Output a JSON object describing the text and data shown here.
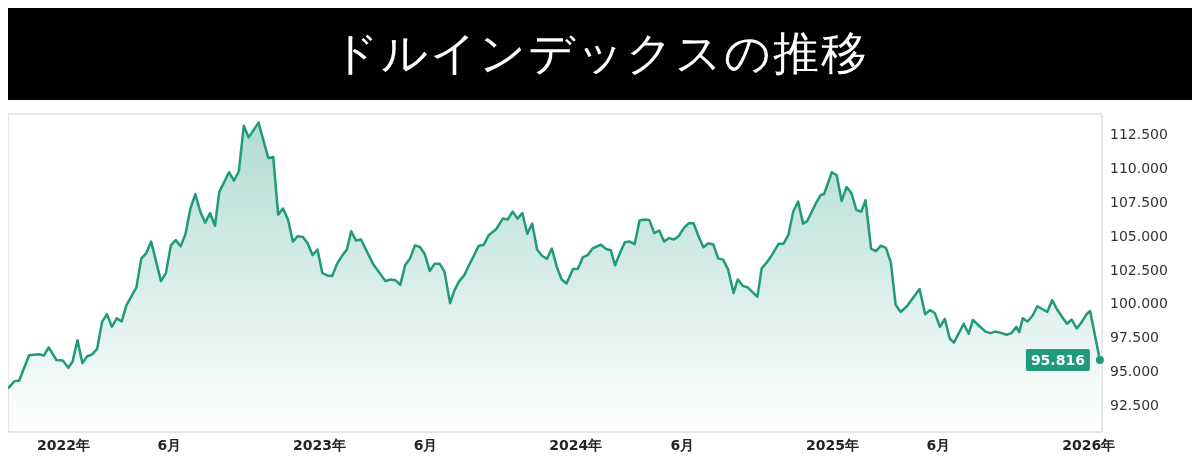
{
  "chart_data": {
    "type": "area",
    "title": "ドルインデックスの推移",
    "x": [
      "2021-10-14",
      "2021-10-23",
      "2021-10-30",
      "2021-11-13",
      "2021-11-27",
      "2021-12-04",
      "2021-12-11",
      "2021-12-22",
      "2021-12-31",
      "2022-01-08",
      "2022-01-14",
      "2022-01-21",
      "2022-01-28",
      "2022-02-04",
      "2022-02-11",
      "2022-02-18",
      "2022-02-25",
      "2022-03-04",
      "2022-03-11",
      "2022-03-18",
      "2022-03-25",
      "2022-04-01",
      "2022-04-15",
      "2022-04-22",
      "2022-04-29",
      "2022-05-06",
      "2022-05-20",
      "2022-05-27",
      "2022-06-03",
      "2022-06-10",
      "2022-06-17",
      "2022-06-24",
      "2022-07-01",
      "2022-07-08",
      "2022-07-15",
      "2022-07-22",
      "2022-07-29",
      "2022-08-05",
      "2022-08-11",
      "2022-08-25",
      "2022-09-01",
      "2022-09-08",
      "2022-09-15",
      "2022-09-22",
      "2022-10-06",
      "2022-10-20",
      "2022-10-27",
      "2022-11-03",
      "2022-11-10",
      "2022-11-17",
      "2022-11-24",
      "2022-12-01",
      "2022-12-08",
      "2022-12-15",
      "2022-12-22",
      "2022-12-29",
      "2023-01-05",
      "2023-01-12",
      "2023-01-19",
      "2023-01-26",
      "2023-02-02",
      "2023-02-09",
      "2023-02-15",
      "2023-02-22",
      "2023-03-01",
      "2023-03-18",
      "2023-04-05",
      "2023-04-12",
      "2023-04-19",
      "2023-04-26",
      "2023-05-03",
      "2023-05-10",
      "2023-05-17",
      "2023-05-24",
      "2023-05-31",
      "2023-06-07",
      "2023-06-14",
      "2023-06-21",
      "2023-06-28",
      "2023-07-06",
      "2023-07-12",
      "2023-07-19",
      "2023-07-26",
      "2023-08-02",
      "2023-08-16",
      "2023-08-23",
      "2023-08-30",
      "2023-09-10",
      "2023-09-19",
      "2023-09-26",
      "2023-10-03",
      "2023-10-10",
      "2023-10-17",
      "2023-10-24",
      "2023-10-31",
      "2023-11-07",
      "2023-11-14",
      "2023-11-21",
      "2023-11-28",
      "2023-12-05",
      "2023-12-12",
      "2023-12-19",
      "2023-12-28",
      "2024-01-04",
      "2024-01-11",
      "2024-01-18",
      "2024-01-25",
      "2024-02-06",
      "2024-02-13",
      "2024-02-20",
      "2024-02-26",
      "2024-03-04",
      "2024-03-11",
      "2024-03-18",
      "2024-03-25",
      "2024-04-01",
      "2024-04-08",
      "2024-04-15",
      "2024-04-22",
      "2024-04-29",
      "2024-05-06",
      "2024-05-13",
      "2024-05-20",
      "2024-05-27",
      "2024-06-03",
      "2024-06-10",
      "2024-06-17",
      "2024-06-24",
      "2024-07-01",
      "2024-07-08",
      "2024-07-15",
      "2024-07-22",
      "2024-07-29",
      "2024-08-05",
      "2024-08-13",
      "2024-08-19",
      "2024-08-26",
      "2024-09-02",
      "2024-09-09",
      "2024-09-16",
      "2024-09-22",
      "2024-09-29",
      "2024-10-06",
      "2024-10-16",
      "2024-10-23",
      "2024-10-30",
      "2024-11-06",
      "2024-11-13",
      "2024-11-20",
      "2024-11-26",
      "2024-12-08",
      "2024-12-15",
      "2024-12-20",
      "2024-12-31",
      "2025-01-07",
      "2025-01-14",
      "2025-01-21",
      "2025-01-28",
      "2025-02-04",
      "2025-02-11",
      "2025-02-17",
      "2025-02-25",
      "2025-03-04",
      "2025-03-11",
      "2025-03-18",
      "2025-03-25",
      "2025-04-01",
      "2025-04-08",
      "2025-04-17",
      "2025-05-05",
      "2025-05-13",
      "2025-05-20",
      "2025-05-27",
      "2025-06-03",
      "2025-06-10",
      "2025-06-17",
      "2025-06-23",
      "2025-06-30",
      "2025-07-07",
      "2025-07-14",
      "2025-07-20",
      "2025-07-28",
      "2025-08-07",
      "2025-08-14",
      "2025-08-21",
      "2025-08-30",
      "2025-09-06",
      "2025-09-13",
      "2025-09-20",
      "2025-09-24",
      "2025-09-29",
      "2025-10-06",
      "2025-10-13",
      "2025-10-20",
      "2025-11-03",
      "2025-11-10",
      "2025-11-17",
      "2025-12-01",
      "2025-12-08",
      "2025-12-15",
      "2025-12-22",
      "2025-12-29",
      "2026-01-03",
      "2026-01-17"
    ],
    "series": [
      {
        "color": "#1f9a7a",
        "values": [
          93.72,
          94.24,
          94.31,
          96.17,
          96.24,
          96.15,
          96.76,
          95.82,
          95.78,
          95.24,
          95.71,
          97.27,
          95.59,
          96.1,
          96.24,
          96.64,
          98.62,
          99.2,
          98.27,
          98.9,
          98.67,
          99.9,
          101.19,
          103.33,
          103.71,
          104.57,
          101.65,
          102.24,
          104.27,
          104.69,
          104.22,
          105.15,
          107.02,
          108.07,
          106.79,
          105.97,
          106.67,
          105.74,
          108.23,
          109.7,
          109.07,
          109.77,
          113.13,
          112.27,
          113.36,
          110.75,
          110.82,
          106.55,
          107.02,
          106.2,
          104.57,
          104.97,
          104.92,
          104.45,
          103.57,
          103.99,
          102.24,
          102.07,
          102.03,
          102.94,
          103.52,
          103.99,
          105.34,
          104.64,
          104.73,
          102.94,
          101.65,
          101.77,
          101.72,
          101.37,
          102.82,
          103.33,
          104.29,
          104.17,
          103.64,
          102.4,
          102.94,
          102.94,
          102.35,
          100.02,
          100.95,
          101.65,
          102.07,
          102.82,
          104.27,
          104.34,
          105.04,
          105.5,
          106.27,
          106.2,
          106.79,
          106.27,
          106.67,
          105.15,
          105.9,
          103.99,
          103.52,
          103.29,
          104.06,
          102.7,
          101.77,
          101.47,
          102.54,
          102.54,
          103.4,
          103.57,
          104.06,
          104.34,
          104.03,
          103.94,
          102.82,
          103.71,
          104.52,
          104.57,
          104.38,
          106.13,
          106.2,
          106.16,
          105.2,
          105.39,
          104.57,
          104.83,
          104.73,
          104.99,
          105.57,
          105.92,
          105.92,
          104.97,
          104.15,
          104.45,
          104.36,
          103.33,
          103.24,
          102.54,
          100.77,
          101.77,
          101.3,
          101.19,
          100.84,
          100.49,
          102.59,
          103.01,
          103.52,
          104.41,
          104.41,
          105.04,
          106.79,
          107.53,
          105.9,
          106.09,
          107.37,
          108.0,
          108.09,
          109.7,
          109.47,
          107.56,
          108.61,
          108.14,
          106.9,
          106.79,
          107.63,
          104.03,
          103.87,
          104.27,
          104.1,
          103.05,
          99.9,
          99.37,
          99.79,
          101.07,
          99.2,
          99.51,
          99.27,
          98.27,
          98.85,
          97.41,
          97.11,
          97.81,
          98.5,
          97.76,
          98.78,
          98.39,
          97.92,
          97.81,
          97.92,
          97.81,
          97.69,
          97.81,
          98.27,
          97.87,
          98.9,
          98.67,
          99.09,
          99.79,
          99.37,
          100.25,
          99.55,
          98.5,
          98.81,
          98.15,
          98.62,
          99.2,
          99.44,
          95.816
        ]
      }
    ],
    "xlim": [
      "2021-10-14",
      "2026-01-20"
    ],
    "xticks": [
      {
        "value": "2022-01-01",
        "label": "2022年"
      },
      {
        "value": "2022-06-01",
        "label": "6月"
      },
      {
        "value": "2023-01-01",
        "label": "2023年"
      },
      {
        "value": "2023-06-01",
        "label": "6月"
      },
      {
        "value": "2024-01-01",
        "label": "2024年"
      },
      {
        "value": "2024-06-01",
        "label": "6月"
      },
      {
        "value": "2025-01-01",
        "label": "2025年"
      },
      {
        "value": "2025-06-01",
        "label": "6月"
      },
      {
        "value": "2026-01-01",
        "label": "2026年"
      }
    ],
    "ylim": [
      90.5,
      114
    ],
    "yticks": [
      {
        "value": 92.5,
        "label": "92.500"
      },
      {
        "value": 95,
        "label": "95.000"
      },
      {
        "value": 97.5,
        "label": "97.500"
      },
      {
        "value": 100,
        "label": "100.000"
      },
      {
        "value": 102.5,
        "label": "102.500"
      },
      {
        "value": 105,
        "label": "105.000"
      },
      {
        "value": 107.5,
        "label": "107.500"
      },
      {
        "value": 110,
        "label": "110.000"
      },
      {
        "value": 112.5,
        "label": "112.500"
      }
    ],
    "annotations": [
      {
        "text": "95.816",
        "x": "2026-01-17",
        "y": 95.816
      }
    ]
  }
}
